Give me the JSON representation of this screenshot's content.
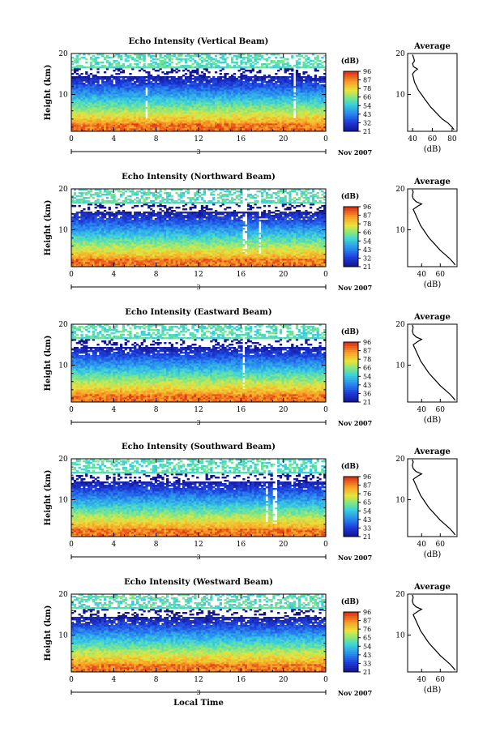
{
  "chart_data": [
    {
      "type": "heatmap",
      "title": "Echo Intensity (Vertical Beam)",
      "xlabel": "",
      "ylabel": "Height (km)",
      "xticks": [
        "0",
        "4",
        "8",
        "12",
        "16",
        "20",
        "0"
      ],
      "yticks": [
        "10",
        "20"
      ],
      "date_mark": "3",
      "date_label": "Nov 2007",
      "xlim": [
        0,
        24
      ],
      "ylim": [
        1,
        20
      ],
      "colorbar": {
        "unit": "(dB)",
        "ticks": [
          "96",
          "87",
          "78",
          "66",
          "54",
          "43",
          "32",
          "21"
        ],
        "range": [
          21,
          96
        ]
      },
      "profile": {
        "title": "Average",
        "xlabel": "(dB)",
        "xticks": [
          "40",
          "60",
          "80"
        ],
        "yticks": [
          "10",
          "20"
        ],
        "xlim": [
          35,
          85
        ],
        "ylim": [
          1,
          20
        ],
        "points": [
          [
            82,
            1.4
          ],
          [
            80,
            2
          ],
          [
            76,
            3
          ],
          [
            70,
            4
          ],
          [
            66,
            5
          ],
          [
            62,
            6
          ],
          [
            58,
            7
          ],
          [
            55,
            8
          ],
          [
            52,
            9
          ],
          [
            49,
            10
          ],
          [
            46,
            11
          ],
          [
            44,
            12
          ],
          [
            42,
            13
          ],
          [
            41,
            14
          ],
          [
            40,
            15
          ],
          [
            42,
            15.6
          ],
          [
            45,
            16.2
          ],
          [
            41,
            16.8
          ],
          [
            40,
            17.5
          ],
          [
            42,
            18.2
          ],
          [
            41,
            19
          ],
          [
            40,
            19.7
          ]
        ]
      },
      "white_cols": [
        7.1,
        21.0
      ]
    },
    {
      "type": "heatmap",
      "title": "Echo Intensity (Northward Beam)",
      "xlabel": "",
      "ylabel": "Height (km)",
      "xticks": [
        "0",
        "4",
        "8",
        "12",
        "16",
        "20",
        "0"
      ],
      "yticks": [
        "10",
        "20"
      ],
      "date_mark": "3",
      "date_label": "Nov 2007",
      "xlim": [
        0,
        24
      ],
      "ylim": [
        1,
        20
      ],
      "colorbar": {
        "unit": "(dB)",
        "ticks": [
          "96",
          "87",
          "78",
          "66",
          "54",
          "43",
          "32",
          "21"
        ],
        "range": [
          21,
          96
        ]
      },
      "profile": {
        "title": "Average",
        "xlabel": "(dB)",
        "xticks": [
          "40",
          "60"
        ],
        "yticks": [
          "10",
          "20"
        ],
        "xlim": [
          25,
          78
        ],
        "ylim": [
          1,
          20
        ],
        "points": [
          [
            76,
            1.4
          ],
          [
            74,
            2
          ],
          [
            70,
            3
          ],
          [
            65,
            4
          ],
          [
            60,
            5
          ],
          [
            56,
            6
          ],
          [
            52,
            7
          ],
          [
            48,
            8
          ],
          [
            45,
            9
          ],
          [
            42,
            10
          ],
          [
            39,
            11
          ],
          [
            37,
            12
          ],
          [
            35,
            13
          ],
          [
            33,
            14
          ],
          [
            31,
            15
          ],
          [
            36,
            15.8
          ],
          [
            40,
            16.3
          ],
          [
            34,
            16.9
          ],
          [
            31,
            17.6
          ],
          [
            30,
            18.4
          ],
          [
            31,
            19.2
          ],
          [
            30,
            19.8
          ]
        ]
      },
      "white_cols": [
        16.4,
        17.8
      ]
    },
    {
      "type": "heatmap",
      "title": "Echo Intensity (Eastward Beam)",
      "xlabel": "",
      "ylabel": "Height (km)",
      "xticks": [
        "0",
        "4",
        "8",
        "12",
        "16",
        "20",
        "0"
      ],
      "yticks": [
        "10",
        "20"
      ],
      "date_mark": "3",
      "date_label": "Nov 2007",
      "xlim": [
        0,
        24
      ],
      "ylim": [
        1,
        20
      ],
      "colorbar": {
        "unit": "(dB)",
        "ticks": [
          "96",
          "87",
          "78",
          "66",
          "54",
          "43",
          "36",
          "21"
        ],
        "range": [
          21,
          96
        ]
      },
      "profile": {
        "title": "Average",
        "xlabel": "(dB)",
        "xticks": [
          "40",
          "60"
        ],
        "yticks": [
          "10",
          "20"
        ],
        "xlim": [
          25,
          78
        ],
        "ylim": [
          1,
          20
        ],
        "points": [
          [
            76,
            1.4
          ],
          [
            74,
            2
          ],
          [
            70,
            3
          ],
          [
            65,
            4
          ],
          [
            60,
            5
          ],
          [
            56,
            6
          ],
          [
            52,
            7
          ],
          [
            48,
            8
          ],
          [
            45,
            9
          ],
          [
            42,
            10
          ],
          [
            39,
            11
          ],
          [
            37,
            12
          ],
          [
            35,
            13
          ],
          [
            33,
            14
          ],
          [
            31,
            15
          ],
          [
            36,
            15.8
          ],
          [
            40,
            16.3
          ],
          [
            34,
            16.9
          ],
          [
            31,
            17.6
          ],
          [
            30,
            18.4
          ],
          [
            31,
            19.2
          ],
          [
            30,
            19.8
          ]
        ]
      },
      "white_cols": [
        16.2
      ]
    },
    {
      "type": "heatmap",
      "title": "Echo Intensity (Southward Beam)",
      "xlabel": "",
      "ylabel": "Height (km)",
      "xticks": [
        "0",
        "4",
        "8",
        "12",
        "16",
        "20",
        "0"
      ],
      "yticks": [
        "10",
        "20"
      ],
      "date_mark": "3",
      "date_label": "Nov 2007",
      "xlim": [
        0,
        24
      ],
      "ylim": [
        1,
        20
      ],
      "colorbar": {
        "unit": "(dB)",
        "ticks": [
          "96",
          "87",
          "76",
          "65",
          "54",
          "43",
          "33",
          "21"
        ],
        "range": [
          21,
          96
        ]
      },
      "profile": {
        "title": "Average",
        "xlabel": "(dB)",
        "xticks": [
          "40",
          "60"
        ],
        "yticks": [
          "10",
          "20"
        ],
        "xlim": [
          25,
          78
        ],
        "ylim": [
          1,
          20
        ],
        "points": [
          [
            76,
            1.4
          ],
          [
            74,
            2
          ],
          [
            70,
            3
          ],
          [
            65,
            4
          ],
          [
            60,
            5
          ],
          [
            56,
            6
          ],
          [
            52,
            7
          ],
          [
            48,
            8
          ],
          [
            45,
            9
          ],
          [
            42,
            10
          ],
          [
            39,
            11
          ],
          [
            37,
            12
          ],
          [
            35,
            13
          ],
          [
            33,
            14
          ],
          [
            31,
            15
          ],
          [
            36,
            15.8
          ],
          [
            40,
            16.3
          ],
          [
            34,
            16.9
          ],
          [
            31,
            17.6
          ],
          [
            30,
            18.4
          ],
          [
            31,
            19.2
          ],
          [
            30,
            19.8
          ]
        ]
      },
      "white_cols": [
        18.4,
        19.2
      ]
    },
    {
      "type": "heatmap",
      "title": "Echo Intensity (Westward Beam)",
      "xlabel": "Local Time",
      "ylabel": "Height (km)",
      "xticks": [
        "0",
        "4",
        "8",
        "12",
        "16",
        "20",
        "0"
      ],
      "yticks": [
        "10",
        "20"
      ],
      "date_mark": "3",
      "date_label": "Nov 2007",
      "xlim": [
        0,
        24
      ],
      "ylim": [
        1,
        20
      ],
      "colorbar": {
        "unit": "(dB)",
        "ticks": [
          "96",
          "87",
          "76",
          "65",
          "54",
          "43",
          "33",
          "21"
        ],
        "range": [
          21,
          96
        ]
      },
      "profile": {
        "title": "Average",
        "xlabel": "(dB)",
        "xticks": [
          "40",
          "60"
        ],
        "yticks": [
          "10",
          "20"
        ],
        "xlim": [
          25,
          78
        ],
        "ylim": [
          1,
          20
        ],
        "points": [
          [
            76,
            1.4
          ],
          [
            74,
            2
          ],
          [
            70,
            3
          ],
          [
            65,
            4
          ],
          [
            60,
            5
          ],
          [
            56,
            6
          ],
          [
            52,
            7
          ],
          [
            48,
            8
          ],
          [
            45,
            9
          ],
          [
            42,
            10
          ],
          [
            39,
            11
          ],
          [
            37,
            12
          ],
          [
            35,
            13
          ],
          [
            33,
            14
          ],
          [
            31,
            15
          ],
          [
            36,
            15.8
          ],
          [
            40,
            16.3
          ],
          [
            34,
            16.9
          ],
          [
            31,
            17.6
          ],
          [
            30,
            18.4
          ],
          [
            31,
            19.2
          ],
          [
            30,
            19.8
          ]
        ]
      },
      "white_cols": []
    }
  ]
}
